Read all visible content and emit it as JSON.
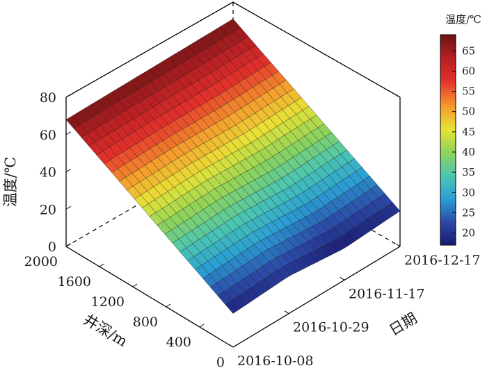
{
  "chart_data": {
    "type": "surface",
    "xlabel": "井深/m",
    "ylabel": "日期",
    "zlabel": "温度/℃",
    "colorbar_title": "温度/℃",
    "depth_ticks": [
      "0",
      "400",
      "800",
      "1200",
      "1600",
      "2000"
    ],
    "date_ticks": [
      "2016-10-08",
      "2016-10-29",
      "2016-11-17",
      "2016-12-17"
    ],
    "temperature_ticks": [
      "0",
      "20",
      "40",
      "60",
      "80"
    ],
    "colorbar_ticks": [
      "20",
      "25",
      "30",
      "35",
      "40",
      "45",
      "50",
      "55",
      "60",
      "65"
    ],
    "depth_range": [
      0,
      2000
    ],
    "temperature_range": [
      0,
      80
    ],
    "colorbar_range": [
      17,
      69
    ],
    "colormap": [
      "#1a1a6e",
      "#2c4aa8",
      "#2a9fd4",
      "#4cc7b0",
      "#8ed35a",
      "#e8e336",
      "#f59a2d",
      "#e4312b",
      "#b51e22",
      "#6b1413"
    ],
    "surface_depths": [
      0,
      2000
    ],
    "surface_rows": [
      {
        "date": "2016-10-08",
        "temperatures": [
          18,
          68
        ]
      },
      {
        "date": "2016-10-29",
        "temperatures": [
          20,
          68
        ]
      },
      {
        "date": "2016-11-17",
        "temperatures": [
          17,
          68
        ]
      },
      {
        "date": "2016-12-17",
        "temperatures": [
          19,
          68
        ]
      }
    ]
  }
}
